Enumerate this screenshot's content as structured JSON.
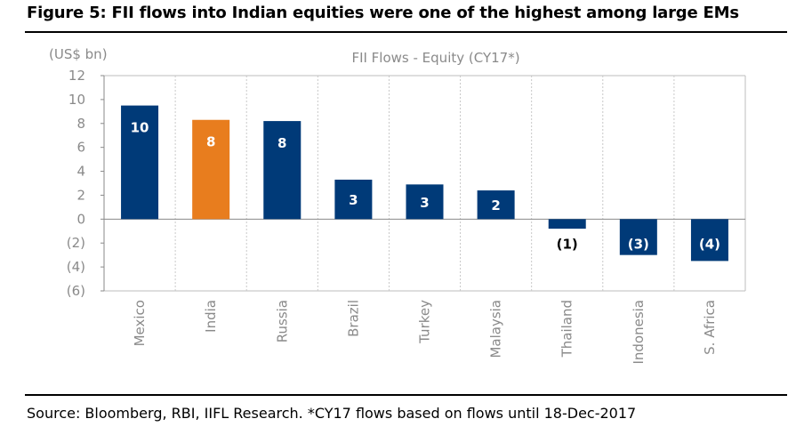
{
  "figure": {
    "title": "Figure 5:  FII flows into Indian equities were one of the highest among large EMs",
    "source": "Source: Bloomberg, RBI, IIFL Research. *CY17 flows based on flows until 18-Dec-2017"
  },
  "chart_data": {
    "type": "bar",
    "title": "FII Flows - Equity (CY17*)",
    "unit_label": "(US$ bn)",
    "categories": [
      "Mexico",
      "India",
      "Russia",
      "Brazil",
      "Turkey",
      "Malaysia",
      "Thailand",
      "Indonesia",
      "S. Africa"
    ],
    "values": [
      9.5,
      8.3,
      8.2,
      3.3,
      2.9,
      2.4,
      -0.8,
      -3.0,
      -3.5
    ],
    "data_labels": [
      "10",
      "8",
      "8",
      "3",
      "3",
      "2",
      "(1)",
      "(3)",
      "(4)"
    ],
    "bar_colors": [
      "#003a78",
      "#e87d1e",
      "#003a78",
      "#003a78",
      "#003a78",
      "#003a78",
      "#003a78",
      "#003a78",
      "#003a78"
    ],
    "ylim": [
      -6,
      12
    ],
    "yticks": [
      12,
      10,
      8,
      6,
      4,
      2,
      0,
      -2,
      -4,
      -6
    ],
    "ytick_labels": [
      "12",
      "10",
      "8",
      "6",
      "4",
      "2",
      "0",
      "(2)",
      "(4)",
      "(6)"
    ],
    "grid": "vertical separators only",
    "legend": "none"
  }
}
